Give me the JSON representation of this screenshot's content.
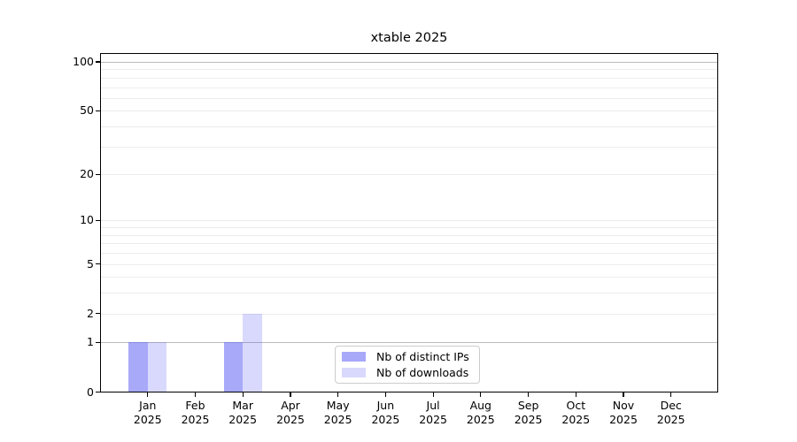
{
  "chart_data": {
    "type": "bar",
    "title": "xtable 2025",
    "categories": [
      "Jan 2025",
      "Feb 2025",
      "Mar 2025",
      "Apr 2025",
      "May 2025",
      "Jun 2025",
      "Jul 2025",
      "Aug 2025",
      "Sep 2025",
      "Oct 2025",
      "Nov 2025",
      "Dec 2025"
    ],
    "series": [
      {
        "name": "Nb of distinct IPs",
        "color": "rgba(82,84,244,0.5)",
        "color_hex_on_white": "#a8a9fa",
        "values": [
          1,
          0,
          1,
          0,
          0,
          0,
          0,
          0,
          0,
          0,
          0,
          0
        ]
      },
      {
        "name": "Nb of downloads",
        "color": "rgba(82,84,244,0.22)",
        "color_hex_on_white": "#d8d9fa",
        "values": [
          1,
          0,
          2,
          0,
          0,
          0,
          0,
          0,
          0,
          0,
          0,
          0
        ]
      }
    ],
    "xlabel": "",
    "ylabel": "",
    "yscale": "log1p",
    "ylim": [
      0,
      113
    ],
    "ytick_values": [
      100,
      50,
      20,
      10,
      5,
      2,
      1,
      0
    ],
    "ytick_labels": [
      "100",
      "50",
      "20",
      "10",
      "5",
      "2",
      "1",
      "0"
    ],
    "major_grid_values": [
      100,
      1
    ],
    "minor_grid_values": [
      90,
      80,
      70,
      60,
      50,
      40,
      30,
      20,
      10,
      9,
      8,
      7,
      6,
      5,
      4,
      3,
      2
    ],
    "grid": true,
    "legend_position": "inside lower center",
    "colors": {
      "spine": "#000000",
      "major_grid": "#bcbcbc",
      "minor_grid": "#ececec",
      "background": "#ffffff"
    }
  }
}
